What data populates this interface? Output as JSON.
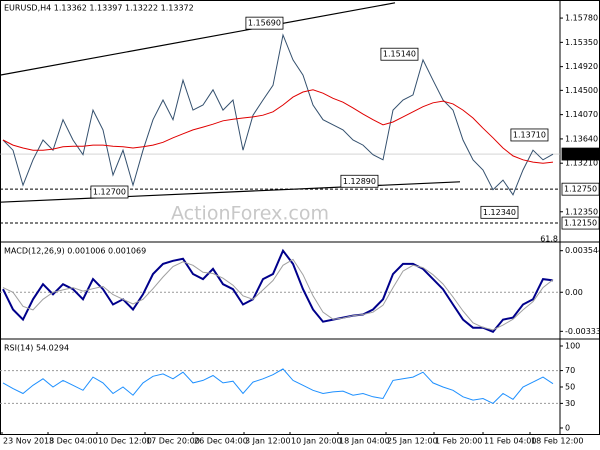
{
  "chart_data": [
    {
      "type": "line",
      "title": "EURUSD,H4 1.13362 1.13397 1.13222 1.13372",
      "watermark": "ActionForex.com",
      "note": "61.8",
      "x": [
        0,
        1,
        2,
        3,
        4,
        5,
        6,
        7,
        8,
        9,
        10,
        11,
        12,
        13,
        14,
        15,
        16,
        17,
        18,
        19,
        20,
        21,
        22,
        23,
        24,
        25,
        26,
        27,
        28,
        29,
        30,
        31,
        32,
        33,
        34,
        35,
        36,
        37,
        38,
        39,
        40,
        41,
        42,
        43,
        44,
        45,
        46,
        47,
        48,
        49,
        50,
        51,
        52,
        53,
        54,
        55
      ],
      "xlim": [
        -0.3,
        55.7
      ],
      "ylim": [
        1.1185,
        1.161
      ],
      "yticks": [
        {
          "value": 1.1578,
          "label": "1.15780"
        },
        {
          "value": 1.1535,
          "label": "1.15350"
        },
        {
          "value": 1.1492,
          "label": "1.14920"
        },
        {
          "value": 1.145,
          "label": "1.14500"
        },
        {
          "value": 1.1407,
          "label": "1.14070"
        },
        {
          "value": 1.1364,
          "label": "1.13640"
        },
        {
          "value": 1.1321,
          "label": "1.13210"
        },
        {
          "value": 1.1235,
          "label": "1.12350"
        }
      ],
      "series": [
        {
          "color": "#34506e",
          "values": [
            1.1362,
            1.1344,
            1.1282,
            1.1327,
            1.1362,
            1.1344,
            1.1398,
            1.1362,
            1.1336,
            1.1415,
            1.138,
            1.13,
            1.1344,
            1.1282,
            1.1344,
            1.1398,
            1.1433,
            1.1398,
            1.1468,
            1.1415,
            1.1424,
            1.1451,
            1.1415,
            1.1433,
            1.1344,
            1.1406,
            1.1433,
            1.1459,
            1.1548,
            1.1504,
            1.1477,
            1.1424,
            1.1398,
            1.1389,
            1.138,
            1.1362,
            1.1353,
            1.1336,
            1.1327,
            1.1415,
            1.1433,
            1.1442,
            1.1504,
            1.1468,
            1.1433,
            1.1415,
            1.1362,
            1.1327,
            1.1309,
            1.1274,
            1.1291,
            1.1265,
            1.1309,
            1.1344,
            1.1327,
            1.1337
          ]
        },
        {
          "color": "#e00000",
          "values": [
            1.1362,
            1.1353,
            1.1348,
            1.1344,
            1.1344,
            1.1346,
            1.135,
            1.1351,
            1.1351,
            1.1353,
            1.1353,
            1.1351,
            1.135,
            1.1348,
            1.135,
            1.1353,
            1.1358,
            1.1366,
            1.1373,
            1.138,
            1.1385,
            1.139,
            1.1396,
            1.1399,
            1.1401,
            1.1403,
            1.1406,
            1.1412,
            1.1424,
            1.1438,
            1.1447,
            1.1451,
            1.1445,
            1.1436,
            1.1429,
            1.1419,
            1.1408,
            1.1398,
            1.1389,
            1.1394,
            1.1403,
            1.1412,
            1.1421,
            1.1428,
            1.1431,
            1.1426,
            1.1415,
            1.1401,
            1.1383,
            1.1366,
            1.1348,
            1.1334,
            1.1327,
            1.1323,
            1.1321,
            1.1323
          ]
        }
      ],
      "trendlines": [
        {
          "x": [
            -0.3,
            39.2
          ],
          "values": [
            1.1477,
            1.1605
          ]
        },
        {
          "x": [
            -0.3,
            45.7
          ],
          "values": [
            1.1252,
            1.1288
          ]
        }
      ],
      "levels": [
        {
          "value": 1.1275,
          "label": "1.12750"
        },
        {
          "value": 1.1215,
          "label": "1.12150"
        }
      ],
      "last": {
        "value": 1.13372,
        "label": "1.13372"
      },
      "annotations": [
        {
          "x": 28,
          "value": 1.1569,
          "label": "1.15690"
        },
        {
          "x": 41.5,
          "value": 1.1514,
          "label": "1.15140"
        },
        {
          "x": 54.5,
          "value": 1.1371,
          "label": "1.13710"
        },
        {
          "x": 37.5,
          "value": 1.1289,
          "label": "1.12890"
        },
        {
          "x": 12.5,
          "value": 1.127,
          "label": "1.12700"
        },
        {
          "x": 51.5,
          "value": 1.1234,
          "label": "1.12340"
        }
      ]
    },
    {
      "type": "line",
      "title": "MACD(12,26,9) 0.001006 0.001069",
      "x": [
        0,
        1,
        2,
        3,
        4,
        5,
        6,
        7,
        8,
        9,
        10,
        11,
        12,
        13,
        14,
        15,
        16,
        17,
        18,
        19,
        20,
        21,
        22,
        23,
        24,
        25,
        26,
        27,
        28,
        29,
        30,
        31,
        32,
        33,
        34,
        35,
        36,
        37,
        38,
        39,
        40,
        41,
        42,
        43,
        44,
        45,
        46,
        47,
        48,
        49,
        50,
        51,
        52,
        53,
        54,
        55
      ],
      "xlim": [
        -0.3,
        55.7
      ],
      "ylim": [
        -0.0039,
        0.0042
      ],
      "yticks": [
        0.003544,
        {
          "value": 0,
          "label": "0.00"
        },
        -0.003331
      ],
      "guide_lines": [
        0
      ],
      "series": [
        {
          "color": "#00008b",
          "values": [
            0.00026,
            -0.00147,
            -0.00233,
            -0.0006,
            0.00069,
            -0.00017,
            0.00069,
            0.00026,
            -0.0006,
            0.00112,
            0.00026,
            -0.00104,
            -0.0006,
            -0.00147,
            -0.00017,
            0.00156,
            0.00242,
            0.00268,
            0.00285,
            0.00156,
            0.00112,
            0.00199,
            0.00069,
            0.00026,
            -0.00104,
            -0.0006,
            0.00112,
            0.00156,
            0.00354,
            0.00242,
            0.00026,
            -0.00147,
            -0.00251,
            -0.00233,
            -0.00216,
            -0.00199,
            -0.0019,
            -0.00147,
            -0.0006,
            0.00156,
            0.00242,
            0.00242,
            0.00199,
            0.00112,
            0.00026,
            -0.00104,
            -0.00233,
            -0.00302,
            -0.00302,
            -0.00337,
            -0.00233,
            -0.00216,
            -0.00104,
            -0.0006,
            0.00112,
            0.00101
          ]
        },
        {
          "color": "#a0a0a0",
          "values": [
            0.0004,
            0,
            -0.0012,
            -0.0015,
            -0.0006,
            0,
            0.0002,
            0.0004,
            0.0001,
            0.0003,
            0.0005,
            -0.0002,
            -0.0006,
            -0.001,
            -0.0006,
            0.0003,
            0.0013,
            0.0022,
            0.0026,
            0.0023,
            0.0017,
            0.0016,
            0.0012,
            0.0006,
            -0.0003,
            -0.0006,
            0.0002,
            0.001,
            0.0023,
            0.0028,
            0.0015,
            -0.0003,
            -0.0017,
            -0.0023,
            -0.0022,
            -0.002,
            -0.0019,
            -0.0017,
            -0.0011,
            0.0004,
            0.0018,
            0.0023,
            0.0021,
            0.0015,
            0.0007,
            -0.0004,
            -0.0016,
            -0.0026,
            -0.003,
            -0.0032,
            -0.0028,
            -0.0023,
            -0.0015,
            -0.0008,
            0.0004,
            0.00107
          ]
        }
      ]
    },
    {
      "type": "line",
      "title": "RSI(14) 54.0294",
      "x": [
        0,
        1,
        2,
        3,
        4,
        5,
        6,
        7,
        8,
        9,
        10,
        11,
        12,
        13,
        14,
        15,
        16,
        17,
        18,
        19,
        20,
        21,
        22,
        23,
        24,
        25,
        26,
        27,
        28,
        29,
        30,
        31,
        32,
        33,
        34,
        35,
        36,
        37,
        38,
        39,
        40,
        41,
        42,
        43,
        44,
        45,
        46,
        47,
        48,
        49,
        50,
        51,
        52,
        53,
        54,
        55
      ],
      "xlim": [
        -0.3,
        55.7
      ],
      "ylim": [
        -4.9,
        107.3
      ],
      "yticks": [
        100,
        70,
        50,
        30,
        0
      ],
      "guide_lines": [
        70,
        30
      ],
      "xticks": [
        {
          "value": -0.1,
          "label": "23 Nov 2018"
        },
        {
          "value": 4.5,
          "label": "3 Dec 04:00"
        },
        {
          "value": 9.4,
          "label": "10 Dec 12:00"
        },
        {
          "value": 14.2,
          "label": "17 Dec 20:00"
        },
        {
          "value": 19,
          "label": "26 Dec 04:00"
        },
        {
          "value": 24.1,
          "label": "3 Jan 12:00"
        },
        {
          "value": 28.7,
          "label": "10 Jan 20:00"
        },
        {
          "value": 33.5,
          "label": "18 Jan 04:00"
        },
        {
          "value": 38.3,
          "label": "25 Jan 12:00"
        },
        {
          "value": 43.1,
          "label": "1 Feb 20:00"
        },
        {
          "value": 48,
          "label": "11 Feb 04:00"
        },
        {
          "value": 52.7,
          "label": "18 Feb 12:00"
        }
      ],
      "series": [
        {
          "color": "#1e90ff",
          "values": [
            55,
            48,
            42,
            52,
            60,
            50,
            58,
            52,
            46,
            62,
            55,
            42,
            50,
            40,
            55,
            63,
            66,
            60,
            68,
            55,
            58,
            64,
            55,
            57,
            42,
            56,
            60,
            65,
            72,
            58,
            52,
            46,
            42,
            44,
            45,
            40,
            42,
            38,
            36,
            58,
            60,
            62,
            68,
            55,
            50,
            46,
            38,
            34,
            36,
            30,
            42,
            35,
            50,
            56,
            62,
            54.0294
          ]
        }
      ]
    }
  ]
}
